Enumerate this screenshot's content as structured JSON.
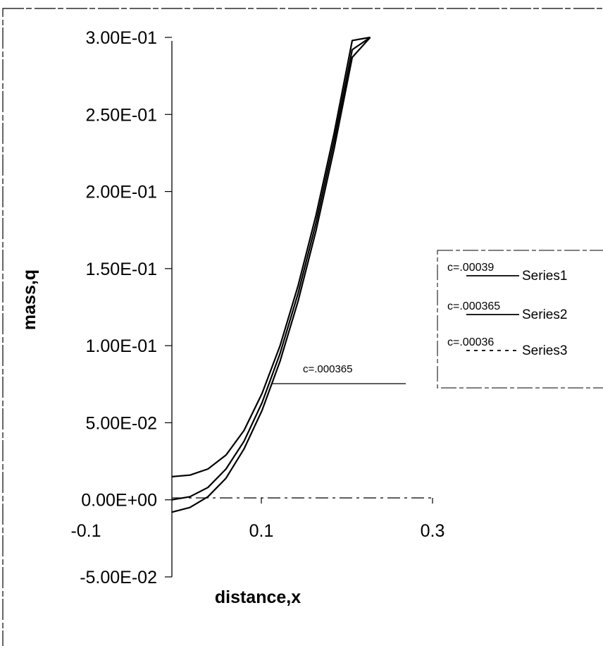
{
  "chart_data": {
    "type": "line",
    "title": "",
    "xlabel": "distance,x",
    "ylabel": "mass,q",
    "ylim": [
      -0.05,
      0.3
    ],
    "xlim": [
      -0.1,
      0.35
    ],
    "x_tick_labels": [
      "-0.1",
      "0.1",
      "0.3"
    ],
    "y_tick_labels": [
      "3.00E-01",
      "2.50E-01",
      "2.00E-01",
      "1.50E-01",
      "1.00E-01",
      "5.00E-02",
      "0.00E+00",
      "-5.00E-02"
    ],
    "y_tick_values": [
      0.3,
      0.25,
      0.2,
      0.15,
      0.1,
      0.05,
      0.0,
      -0.05
    ],
    "grid": false,
    "legend_position": "right",
    "series": [
      {
        "name": "Series1",
        "legend_c": "c=.00039",
        "style": "solid",
        "x": [
          0.0,
          0.02,
          0.04,
          0.06,
          0.08,
          0.1,
          0.12,
          0.14,
          0.16,
          0.18,
          0.2,
          0.22
        ],
        "y": [
          0.015,
          0.016,
          0.02,
          0.029,
          0.045,
          0.069,
          0.1,
          0.139,
          0.185,
          0.238,
          0.298,
          0.3
        ]
      },
      {
        "name": "Series2",
        "legend_c": "c=.000365",
        "style": "solid",
        "x": [
          0.0,
          0.02,
          0.04,
          0.06,
          0.08,
          0.1,
          0.12,
          0.14,
          0.16,
          0.18,
          0.2,
          0.22
        ],
        "y": [
          0.0,
          0.002,
          0.008,
          0.02,
          0.038,
          0.063,
          0.095,
          0.134,
          0.18,
          0.233,
          0.292,
          0.3
        ]
      },
      {
        "name": "Series3",
        "legend_c": "c=.00036",
        "style": "dashed",
        "x": [
          0.0,
          0.02,
          0.04,
          0.06,
          0.08,
          0.1,
          0.12,
          0.14,
          0.16,
          0.18,
          0.2,
          0.22
        ],
        "y": [
          -0.008,
          -0.005,
          0.002,
          0.014,
          0.033,
          0.058,
          0.09,
          0.129,
          0.175,
          0.228,
          0.287,
          0.3
        ]
      }
    ],
    "annotations": [
      {
        "text": "c=.000365",
        "x": 0.11,
        "y": 0.075
      }
    ]
  }
}
